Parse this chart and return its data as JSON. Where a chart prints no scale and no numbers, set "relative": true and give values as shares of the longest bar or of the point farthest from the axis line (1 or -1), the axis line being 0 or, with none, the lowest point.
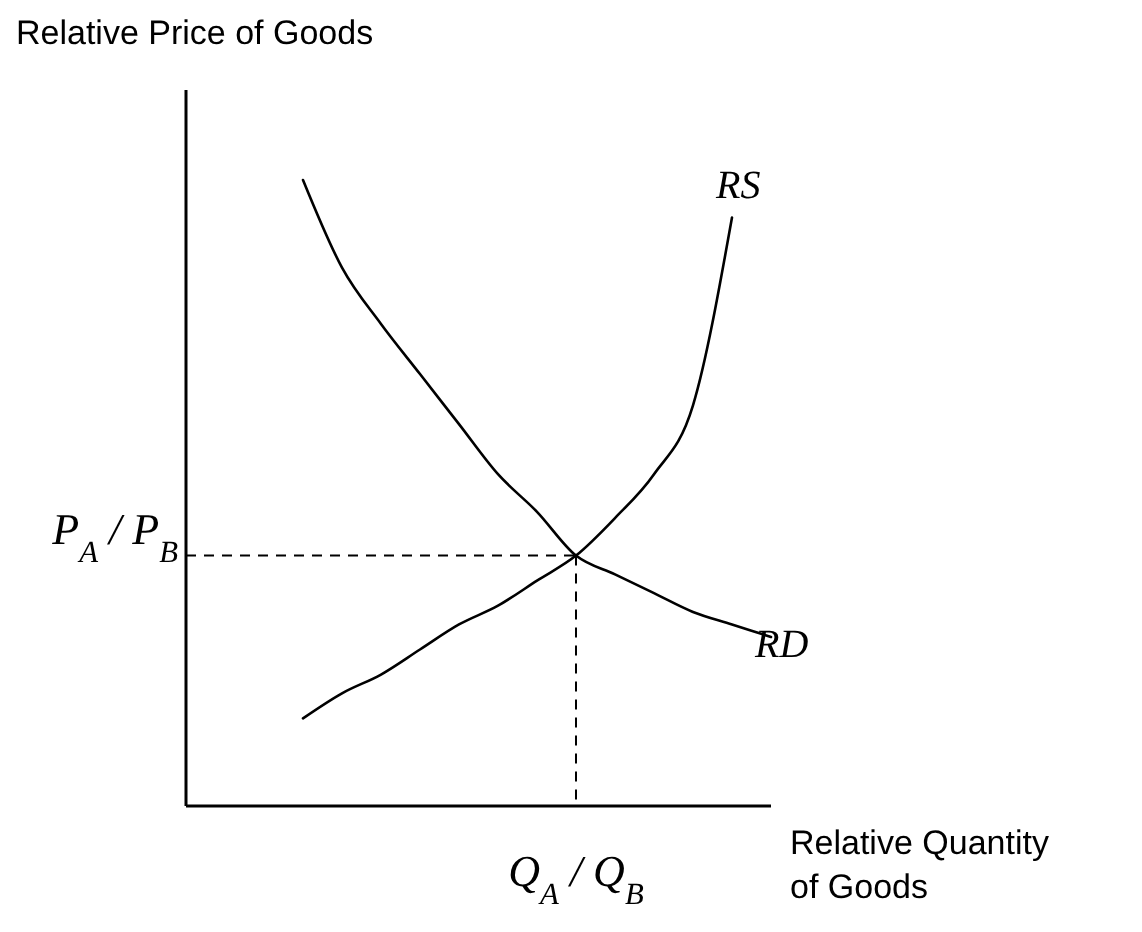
{
  "chart_data": {
    "type": "line",
    "relative": true,
    "ylabel": "Relative Price of Goods",
    "xlabel": "Relative Quantity of Goods",
    "line_style": "solid",
    "categories": [
      null,
      null,
      null,
      null,
      null,
      null,
      null,
      null,
      null,
      null,
      null,
      null,
      null,
      null,
      null,
      null
    ],
    "series": [
      {
        "name": "RS",
        "color": "#000000",
        "values": [
          null,
          null,
          null,
          0.14,
          0.18,
          0.21,
          0.25,
          0.29,
          0.32,
          0.36,
          0.4,
          0.46,
          0.53,
          0.64,
          0.94,
          null
        ]
      },
      {
        "name": "RD",
        "color": "#000000",
        "values": [
          null,
          null,
          null,
          1.0,
          0.86,
          0.77,
          0.69,
          0.61,
          0.53,
          0.47,
          0.4,
          0.37,
          0.34,
          0.31,
          0.29,
          0.27
        ]
      }
    ],
    "annotations": [
      "P$_{A}$ / P$_{B}$",
      "Q$_{A}$ / Q$_{B}$"
    ]
  }
}
